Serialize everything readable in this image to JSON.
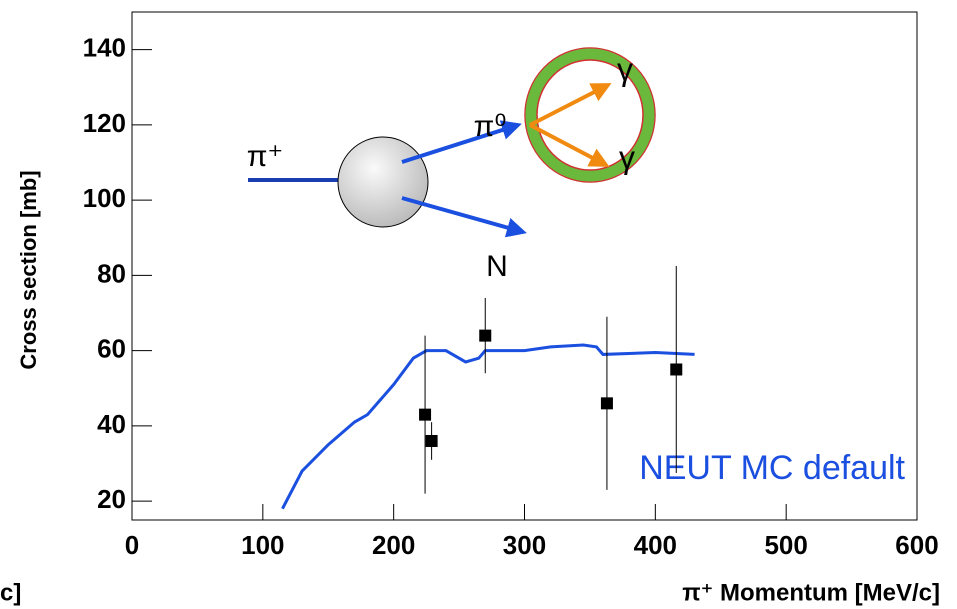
{
  "chart_data": {
    "type": "line",
    "x_label": "π⁺ Momentum [MeV/c]",
    "y_label": "Cross section [mb]",
    "xlim": [
      0,
      600
    ],
    "ylim": [
      15,
      150
    ],
    "xticks": [
      0,
      100,
      200,
      300,
      400,
      500,
      600
    ],
    "yticks": [
      20,
      40,
      60,
      80,
      100,
      120,
      140
    ],
    "series": [
      {
        "name": "NEUT MC default",
        "color": "#1a4fe0",
        "x": [
          115,
          130,
          150,
          170,
          180,
          200,
          215,
          225,
          240,
          255,
          265,
          270,
          280,
          300,
          320,
          345,
          355,
          360,
          400,
          430
        ],
        "values": [
          18,
          28,
          35,
          41,
          43,
          51,
          58,
          60,
          60,
          57,
          58,
          60,
          60,
          60,
          61,
          61.5,
          61,
          59,
          59.5,
          59
        ]
      }
    ],
    "points": {
      "color": "#000000",
      "x": [
        224,
        229,
        270,
        363,
        416
      ],
      "values": [
        43,
        36,
        64,
        46,
        55
      ],
      "errors": [
        21,
        5,
        10,
        23,
        27.5
      ]
    },
    "annotations": [
      "π⁺",
      "π⁰",
      "N",
      "γ",
      "γ",
      "c]"
    ]
  }
}
